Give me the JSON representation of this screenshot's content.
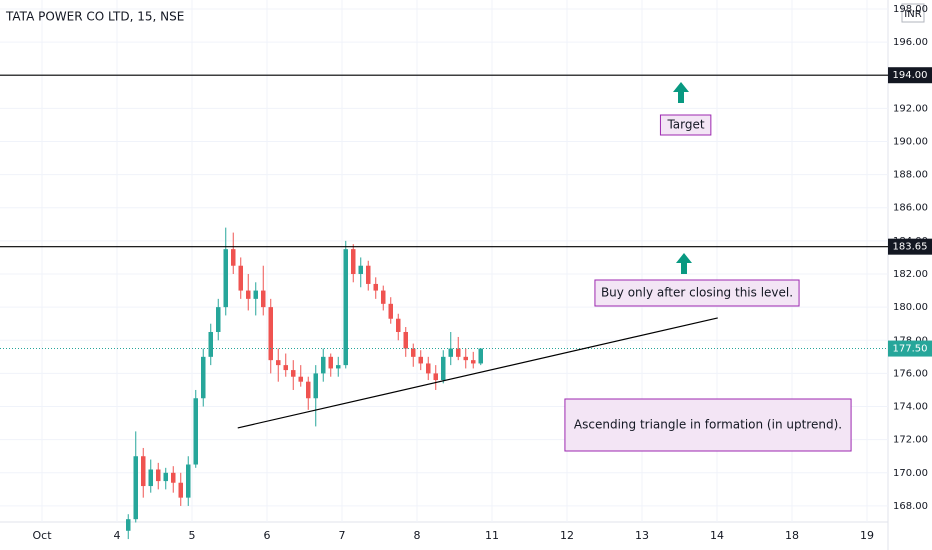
{
  "chart_data": {
    "type": "candlestick",
    "title": "TATA POWER CO LTD, 15, NSE",
    "currency": "INR",
    "x": [
      1.15,
      1.25,
      1.35,
      1.45,
      1.55,
      1.65,
      1.75,
      1.85,
      1.95,
      2.05,
      2.15,
      2.25,
      2.35,
      2.45,
      2.55,
      2.65,
      2.75,
      2.85,
      2.95,
      3.05,
      3.15,
      3.25,
      3.35,
      3.45,
      3.55,
      3.65,
      3.75,
      3.85,
      3.95,
      4.05,
      4.15,
      4.25,
      4.35,
      4.45,
      4.55,
      4.65,
      4.75,
      4.85,
      4.95,
      5.05,
      5.15,
      5.25,
      5.35,
      5.45,
      5.55,
      5.65,
      5.75,
      5.85
    ],
    "open": [
      166.5,
      167.2,
      171,
      169.2,
      170.2,
      169.5,
      170,
      169.4,
      168.5,
      170.5,
      174.5,
      177,
      178.5,
      180,
      183.5,
      182.5,
      181,
      180.5,
      181,
      180,
      176.8,
      176.5,
      176.2,
      175.8,
      175.5,
      174.5,
      176,
      177,
      176.3,
      176.5,
      183.5,
      182,
      182.5,
      181.4,
      181,
      180.2,
      179.3,
      178.5,
      177.5,
      177,
      176.6,
      176,
      175.6,
      177,
      177.5,
      177,
      176.8,
      176.6
    ],
    "high": [
      167.5,
      172.5,
      171.5,
      170.8,
      170.6,
      170.3,
      170.4,
      170,
      171,
      175,
      177.5,
      179,
      180.5,
      184.8,
      184.5,
      183,
      182,
      181.5,
      182.5,
      180.5,
      177.5,
      177.2,
      176.8,
      176.5,
      175.8,
      176.5,
      177.5,
      177.2,
      177,
      184,
      183.8,
      183,
      182.8,
      181.8,
      181.3,
      180.6,
      179.6,
      178.8,
      177.8,
      177.4,
      177,
      176.5,
      177.4,
      178.5,
      178.2,
      177.5,
      177.3,
      177.4
    ],
    "low": [
      166,
      167,
      168.5,
      168.8,
      169,
      169,
      168.8,
      168,
      168,
      170.3,
      174,
      176.5,
      178,
      179.5,
      182,
      180.5,
      179.8,
      179.5,
      179.5,
      176,
      175.5,
      175.8,
      175,
      175.2,
      173.8,
      172.8,
      175.5,
      175.8,
      175.8,
      176.3,
      181.5,
      181.2,
      181,
      180.5,
      179.8,
      179,
      178,
      177,
      176.4,
      176.2,
      175.6,
      175,
      175.4,
      176.5,
      176.8,
      176.3,
      176.3,
      176.5
    ],
    "close": [
      167.2,
      171,
      169.2,
      170.2,
      169.5,
      170,
      169.4,
      168.5,
      170.5,
      174.5,
      177,
      178.5,
      180,
      183.5,
      182.5,
      181,
      180.5,
      181,
      180,
      176.8,
      176.5,
      176.2,
      175.8,
      175.5,
      174.5,
      176,
      177,
      176.3,
      176.5,
      183.5,
      182,
      182.5,
      181.4,
      181,
      180.2,
      179.3,
      178.5,
      177.5,
      177,
      176.6,
      176,
      175.6,
      177,
      177.5,
      177,
      176.8,
      176.6,
      177.5
    ],
    "up_color": "#26a69a",
    "down_color": "#ef5350",
    "xlim": [
      -0.56,
      11.28
    ],
    "xticks": [
      {
        "value": 0,
        "label": "Oct"
      },
      {
        "value": 1,
        "label": "4"
      },
      {
        "value": 2,
        "label": "5"
      },
      {
        "value": 3,
        "label": "6"
      },
      {
        "value": 4,
        "label": "7"
      },
      {
        "value": 5,
        "label": "8"
      },
      {
        "value": 6,
        "label": "11"
      },
      {
        "value": 7,
        "label": "12"
      },
      {
        "value": 8,
        "label": "13"
      },
      {
        "value": 9,
        "label": "14"
      },
      {
        "value": 10,
        "label": "18"
      },
      {
        "value": 11,
        "label": "19"
      }
    ],
    "ylim": [
      167.03,
      198.54
    ],
    "yticks": [
      {
        "value": 168,
        "label": "168.00"
      },
      {
        "value": 170,
        "label": "170.00"
      },
      {
        "value": 172,
        "label": "172.00"
      },
      {
        "value": 174,
        "label": "174.00"
      },
      {
        "value": 176,
        "label": "176.00"
      },
      {
        "value": 178,
        "label": "178.00"
      },
      {
        "value": 180,
        "label": "180.00"
      },
      {
        "value": 182,
        "label": "182.00"
      },
      {
        "value": 184,
        "label": "184.00"
      },
      {
        "value": 186,
        "label": "186.00"
      },
      {
        "value": 188,
        "label": "188.00"
      },
      {
        "value": 190,
        "label": "190.00"
      },
      {
        "value": 192,
        "label": "192.00"
      },
      {
        "value": 194,
        "label": "194.00"
      },
      {
        "value": 196,
        "label": "196.00"
      },
      {
        "value": 198,
        "label": "198.00"
      }
    ],
    "grid": true,
    "hlines": [
      {
        "value": 194,
        "label": "194.00"
      },
      {
        "value": 183.65,
        "label": "183.65"
      }
    ],
    "last_price": {
      "value": 177.5,
      "label": "177.50"
    },
    "trendline": {
      "x": [
        2.61,
        9.01
      ],
      "y": [
        172.71,
        179.35
      ]
    },
    "annotations": [
      "Target",
      "Buy only after closing this level.",
      "Ascending triangle in formation (in uptrend)."
    ]
  }
}
